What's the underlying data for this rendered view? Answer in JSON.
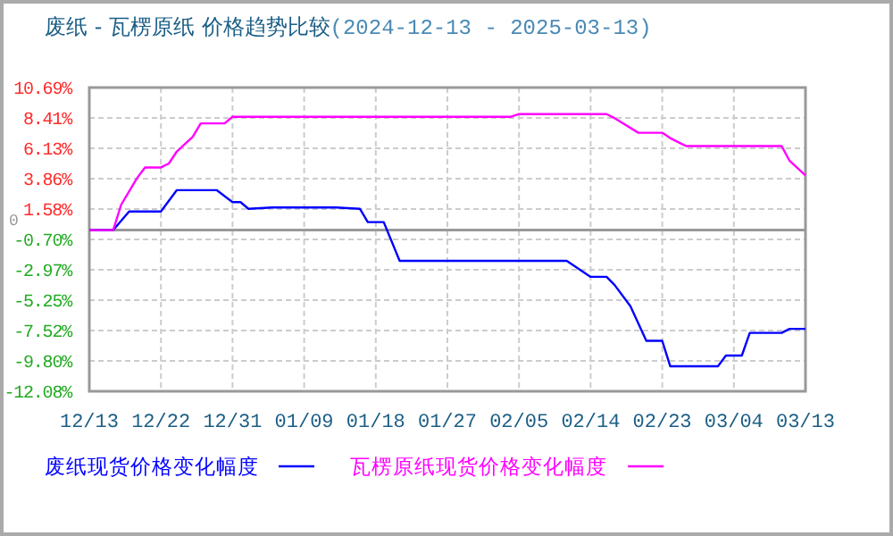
{
  "chart_data": {
    "type": "line",
    "title": "废纸 - 瓦楞原纸 价格趋势比较",
    "subtitle": "(2024-12-13 - 2025-03-13)",
    "xlim": [
      "2024-12-13",
      "2025-03-13"
    ],
    "xticks": [
      {
        "value": "2024-12-13",
        "label": "12/13"
      },
      {
        "value": "2024-12-22",
        "label": "12/22"
      },
      {
        "value": "2024-12-31",
        "label": "12/31"
      },
      {
        "value": "2025-01-09",
        "label": "01/09"
      },
      {
        "value": "2025-01-18",
        "label": "01/18"
      },
      {
        "value": "2025-01-27",
        "label": "01/27"
      },
      {
        "value": "2025-02-05",
        "label": "02/05"
      },
      {
        "value": "2025-02-14",
        "label": "02/14"
      },
      {
        "value": "2025-02-23",
        "label": "02/23"
      },
      {
        "value": "2025-03-04",
        "label": "03/04"
      },
      {
        "value": "2025-03-13",
        "label": "03/13"
      }
    ],
    "ylim": [
      -12.08,
      10.69
    ],
    "yticks": [
      {
        "value": -12.08,
        "label": "-12.08%"
      },
      {
        "value": -9.8,
        "label": "-9.80%"
      },
      {
        "value": -7.52,
        "label": "-7.52%"
      },
      {
        "value": -5.25,
        "label": "-5.25%"
      },
      {
        "value": -2.97,
        "label": "-2.97%"
      },
      {
        "value": -0.7,
        "label": "-0.70%"
      },
      {
        "value": 1.58,
        "label": "1.58%"
      },
      {
        "value": 3.86,
        "label": "3.86%"
      },
      {
        "value": 6.13,
        "label": "6.13%"
      },
      {
        "value": 8.41,
        "label": "8.41%"
      },
      {
        "value": 10.69,
        "label": "10.69%"
      }
    ],
    "grid": true,
    "legend": "bottom",
    "ref_lines": [
      {
        "axis": "y",
        "value": 0,
        "label": "0",
        "color": "#999999"
      }
    ],
    "series": [
      {
        "name": "废纸现货价格变化幅度",
        "color": "#0000ff",
        "x": [
          "2024-12-13",
          "2024-12-16",
          "2024-12-18",
          "2024-12-22",
          "2024-12-24",
          "2024-12-29",
          "2024-12-31",
          "2025-01-01",
          "2025-01-02",
          "2025-01-05",
          "2025-01-13",
          "2025-01-16",
          "2025-01-17",
          "2025-01-19",
          "2025-01-21",
          "2025-02-11",
          "2025-02-14",
          "2025-02-16",
          "2025-02-17",
          "2025-02-19",
          "2025-02-21",
          "2025-02-23",
          "2025-02-24",
          "2025-03-02",
          "2025-03-03",
          "2025-03-05",
          "2025-03-06",
          "2025-03-10",
          "2025-03-11",
          "2025-03-13"
        ],
        "values": [
          0,
          0,
          1.4,
          1.4,
          3.0,
          3.0,
          2.1,
          2.1,
          1.6,
          1.7,
          1.7,
          1.6,
          0.6,
          0.6,
          -2.3,
          -2.3,
          -3.5,
          -3.5,
          -4.1,
          -5.7,
          -8.3,
          -8.3,
          -10.2,
          -10.2,
          -9.4,
          -9.4,
          -7.7,
          -7.7,
          -7.4,
          -7.4
        ]
      },
      {
        "name": "瓦楞原纸现货价格变化幅度",
        "color": "#ff00ff",
        "x": [
          "2024-12-13",
          "2024-12-16",
          "2024-12-17",
          "2024-12-19",
          "2024-12-20",
          "2024-12-22",
          "2024-12-23",
          "2024-12-24",
          "2024-12-26",
          "2024-12-27",
          "2024-12-30",
          "2024-12-31",
          "2025-02-04",
          "2025-02-05",
          "2025-02-16",
          "2025-02-17",
          "2025-02-20",
          "2025-02-23",
          "2025-02-24",
          "2025-02-26",
          "2025-03-10",
          "2025-03-11",
          "2025-03-13"
        ],
        "values": [
          0,
          0,
          1.9,
          3.9,
          4.7,
          4.7,
          5.0,
          5.9,
          7.0,
          8.0,
          8.0,
          8.5,
          8.5,
          8.7,
          8.7,
          8.4,
          7.3,
          7.3,
          6.9,
          6.3,
          6.3,
          5.2,
          4.1
        ]
      }
    ]
  }
}
